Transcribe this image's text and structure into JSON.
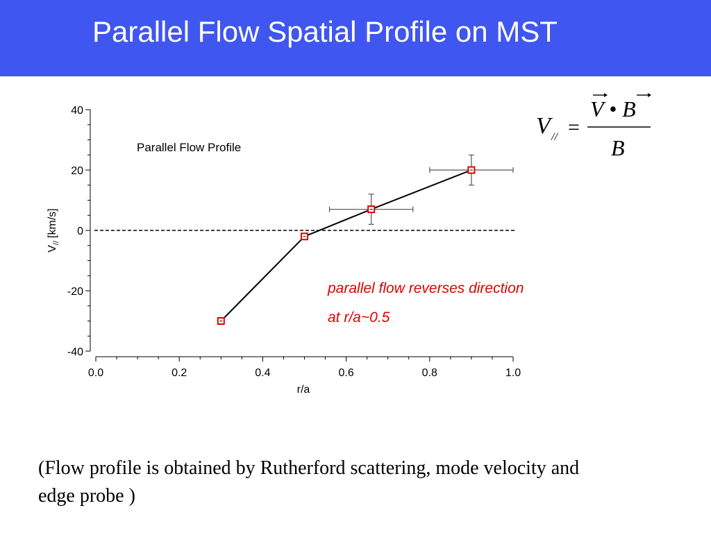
{
  "slide": {
    "title": "Parallel Flow Spatial Profile on MST",
    "caption": "(Flow profile is obtained by Rutherford scattering, mode velocity   and edge probe )",
    "colors": {
      "title_bar": "#3f56f0",
      "marker": "#e00000",
      "annotation": "#e00000"
    }
  },
  "formula": {
    "lhs": "V",
    "lhs_sub": "//",
    "equals": "=",
    "numerator": "V • B",
    "denominator": "B"
  },
  "chart_data": {
    "type": "scatter",
    "title": "Parallel Flow Profile",
    "xlabel": "r/a",
    "ylabel": "V",
    "ylabel_sub": "//",
    "ylabel_unit": "[km/s]",
    "xlim": [
      0.0,
      1.0
    ],
    "ylim": [
      -40,
      40
    ],
    "xticks": [
      "0.0",
      "0.2",
      "0.4",
      "0.6",
      "0.8",
      "1.0"
    ],
    "xtick_values": [
      0.0,
      0.2,
      0.4,
      0.6,
      0.8,
      1.0
    ],
    "yticks": [
      "40",
      "20",
      "0",
      "-20",
      "-40"
    ],
    "ytick_values": [
      40,
      20,
      0,
      -20,
      -40
    ],
    "reference_line": {
      "y": 0,
      "style": "dashed"
    },
    "series": [
      {
        "x": [
          0.3,
          0.5,
          0.66,
          0.9
        ],
        "y": [
          -30,
          -2,
          7,
          20
        ],
        "x_err": [
          0,
          0,
          0.1,
          0.1
        ],
        "y_err": [
          0,
          0,
          5,
          5
        ],
        "connected": true
      }
    ],
    "annotation": {
      "line1": "parallel flow reverses direction",
      "line2": "at  r/a~0.5"
    },
    "grid": false,
    "legend": "none"
  }
}
